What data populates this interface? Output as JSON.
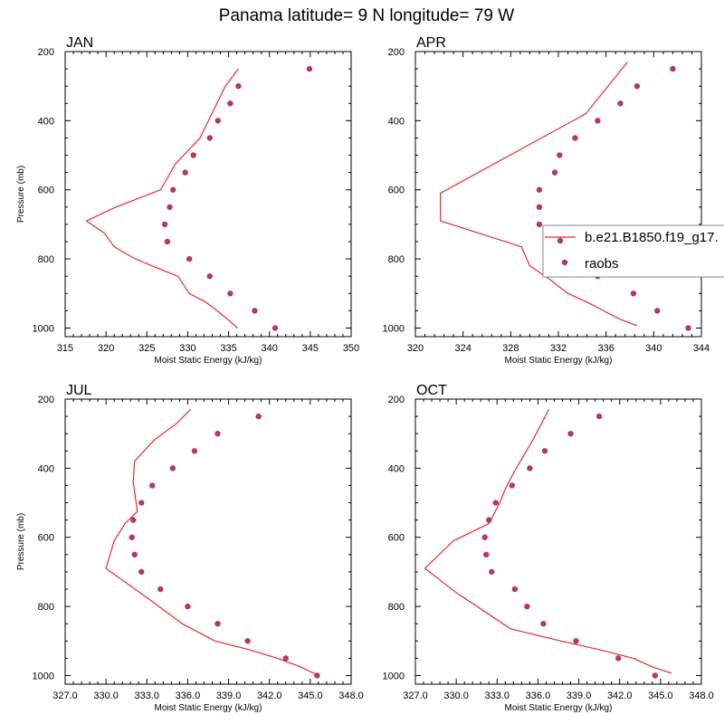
{
  "figure_title": "Panama  latitude= 9 N longitude= 79 W",
  "colors": {
    "model": "#e8282b",
    "obs": "#b23a5a",
    "axis": "#000000",
    "legend_border": "#888888"
  },
  "legend": {
    "model_label": "b.e21.B1850.f19_g17.",
    "obs_label": "raobs"
  },
  "chart_data": [
    {
      "type": "line",
      "title": "JAN",
      "xlabel": "Moist Static Energy (kJ/kg)",
      "ylabel": "Pressure (mb)",
      "xlim": [
        315,
        350
      ],
      "ylim": [
        1025,
        200
      ],
      "xticks": [
        315,
        320,
        325,
        330,
        335,
        340,
        345,
        350
      ],
      "xtick_labels": [
        "315",
        "320",
        "325",
        "330",
        "335",
        "340",
        "345",
        "350"
      ],
      "yticks": [
        200,
        400,
        600,
        800,
        1000
      ],
      "ytick_labels": [
        "200",
        "400",
        "600",
        "800",
        "1000"
      ],
      "show_ylabel": true,
      "show_legend": false,
      "series": [
        {
          "name": "b.e21.B1850.f19_g17.",
          "style": "line",
          "x": [
            336.1,
            334.9,
            333.6,
            332.2,
            330.2,
            328.8,
            326.1,
            323.6,
            321.0,
            319.8,
            317.6,
            321.2,
            326.7,
            328.5,
            331.5,
            334.6,
            336.2
          ],
          "y": [
            1000,
            975,
            950,
            925,
            900,
            850,
            825,
            800,
            765,
            725,
            690,
            650,
            600,
            525,
            450,
            300,
            250
          ]
        },
        {
          "name": "raobs",
          "style": "marker",
          "x": [
            340.7,
            338.2,
            335.2,
            332.7,
            330.2,
            327.5,
            327.2,
            327.8,
            328.2,
            329.7,
            330.7,
            332.7,
            333.7,
            335.2,
            336.2,
            344.9
          ],
          "y": [
            1000,
            950,
            900,
            850,
            800,
            750,
            700,
            650,
            600,
            550,
            500,
            450,
            400,
            350,
            300,
            250
          ]
        }
      ]
    },
    {
      "type": "line",
      "title": "APR",
      "xlabel": "Moist Static Energy (kJ/kg)",
      "ylabel": "Pressure (mb)",
      "xlim": [
        320,
        344
      ],
      "ylim": [
        1025,
        200
      ],
      "xticks": [
        320,
        324,
        328,
        332,
        336,
        340,
        344
      ],
      "xtick_labels": [
        "320",
        "324",
        "328",
        "332",
        "336",
        "340",
        "344"
      ],
      "yticks": [
        200,
        400,
        600,
        800,
        1000
      ],
      "ytick_labels": [
        "200",
        "400",
        "600",
        "800",
        "1000"
      ],
      "show_ylabel": false,
      "show_legend": true,
      "series": [
        {
          "name": "b.e21.B1850.f19_g17.",
          "style": "line",
          "x": [
            338.6,
            337.2,
            335.8,
            334.4,
            332.8,
            331.3,
            329.6,
            328.9,
            322.1,
            322.1,
            334.3,
            337.8
          ],
          "y": [
            993,
            975,
            950,
            925,
            900,
            860,
            820,
            765,
            690,
            610,
            380,
            230
          ]
        },
        {
          "name": "raobs",
          "style": "marker",
          "x": [
            342.9,
            340.3,
            338.3,
            335.3,
            333.9,
            330.4,
            330.4,
            330.4,
            331.7,
            332.1,
            333.4,
            335.3,
            337.2,
            338.6,
            341.6
          ],
          "y": [
            1000,
            950,
            900,
            850,
            800,
            700,
            650,
            600,
            550,
            500,
            450,
            400,
            350,
            300,
            250
          ]
        }
      ]
    },
    {
      "type": "line",
      "title": "JUL",
      "xlabel": "Moist Static Energy (kJ/kg)",
      "ylabel": "Pressure (mb)",
      "xlim": [
        327,
        348
      ],
      "ylim": [
        1025,
        200
      ],
      "xticks": [
        327,
        330,
        333,
        336,
        339,
        342,
        345,
        348
      ],
      "xtick_labels": [
        "327.0",
        "330.0",
        "333.0",
        "336.0",
        "339.0",
        "342.0",
        "345.0",
        "348.0"
      ],
      "yticks": [
        200,
        400,
        600,
        800,
        1000
      ],
      "ytick_labels": [
        "200",
        "400",
        "600",
        "800",
        "1000"
      ],
      "show_ylabel": true,
      "show_legend": false,
      "series": [
        {
          "name": "b.e21.B1850.f19_g17.",
          "style": "line",
          "x": [
            345.6,
            344.3,
            342.6,
            340.5,
            338.0,
            335.6,
            333.2,
            330.0,
            330.6,
            331.4,
            332.3,
            332.0,
            332.1,
            333.5,
            335.2,
            336.2
          ],
          "y": [
            1000,
            975,
            950,
            925,
            900,
            850,
            780,
            690,
            610,
            560,
            525,
            440,
            380,
            320,
            270,
            230
          ]
        },
        {
          "name": "raobs",
          "style": "marker",
          "x": [
            345.5,
            343.2,
            340.4,
            338.2,
            336.0,
            334.0,
            332.6,
            332.1,
            331.9,
            332.0,
            332.6,
            333.4,
            334.9,
            336.5,
            338.2,
            341.2
          ],
          "y": [
            1000,
            950,
            900,
            850,
            800,
            750,
            700,
            650,
            600,
            550,
            500,
            450,
            400,
            350,
            300,
            250
          ]
        }
      ]
    },
    {
      "type": "line",
      "title": "OCT",
      "xlabel": "Moist Static Energy (kJ/kg)",
      "ylabel": "Pressure (mb)",
      "xlim": [
        327,
        348
      ],
      "ylim": [
        1025,
        200
      ],
      "xticks": [
        327,
        330,
        333,
        336,
        339,
        342,
        345,
        348
      ],
      "xtick_labels": [
        "327.0",
        "330.0",
        "333.0",
        "336.0",
        "339.0",
        "342.0",
        "345.0",
        "348.0"
      ],
      "yticks": [
        200,
        400,
        600,
        800,
        1000
      ],
      "ytick_labels": [
        "200",
        "400",
        "600",
        "800",
        "1000"
      ],
      "show_ylabel": false,
      "show_legend": false,
      "series": [
        {
          "name": "b.e21.B1850.f19_g17.",
          "style": "line",
          "x": [
            345.8,
            344.4,
            343.0,
            340.5,
            337.7,
            334.0,
            330.0,
            327.7,
            329.8,
            332.4,
            333.2,
            333.6,
            334.4,
            335.6,
            336.8
          ],
          "y": [
            993,
            975,
            950,
            925,
            900,
            865,
            760,
            690,
            610,
            560,
            500,
            460,
            400,
            320,
            230
          ]
        },
        {
          "name": "raobs",
          "style": "marker",
          "x": [
            344.6,
            341.9,
            338.8,
            336.4,
            335.2,
            334.3,
            332.6,
            332.2,
            332.1,
            332.4,
            332.9,
            334.1,
            335.4,
            336.5,
            338.4,
            340.5
          ],
          "y": [
            1000,
            950,
            900,
            850,
            800,
            750,
            700,
            650,
            600,
            550,
            500,
            450,
            400,
            350,
            300,
            250
          ]
        }
      ]
    }
  ]
}
